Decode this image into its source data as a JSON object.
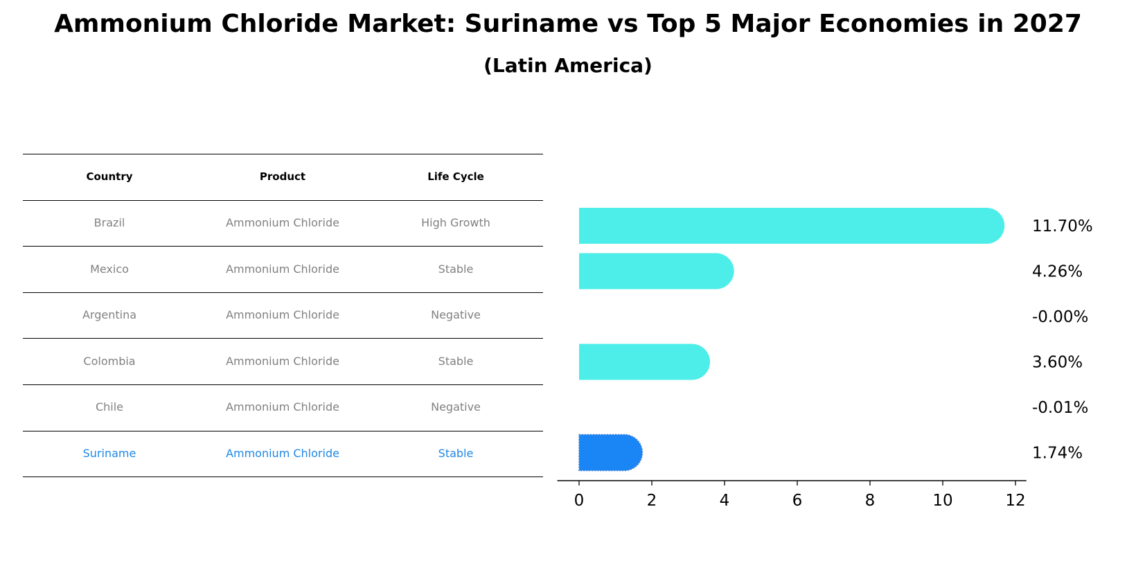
{
  "title": "Ammonium Chloride Market: Suriname vs Top 5 Major Economies in 2027",
  "subtitle": "(Latin America)",
  "table": {
    "headers": [
      "Country",
      "Product",
      "Life Cycle"
    ],
    "rows": [
      {
        "country": "Brazil",
        "product": "Ammonium Chloride",
        "life_cycle": "High Growth",
        "highlight": false
      },
      {
        "country": "Mexico",
        "product": "Ammonium Chloride",
        "life_cycle": "Stable",
        "highlight": false
      },
      {
        "country": "Argentina",
        "product": "Ammonium Chloride",
        "life_cycle": "Negative",
        "highlight": false
      },
      {
        "country": "Colombia",
        "product": "Ammonium Chloride",
        "life_cycle": "Stable",
        "highlight": false
      },
      {
        "country": "Chile",
        "product": "Ammonium Chloride",
        "life_cycle": "Negative",
        "highlight": false
      },
      {
        "country": "Suriname",
        "product": "Ammonium Chloride",
        "life_cycle": "Stable",
        "highlight": true
      }
    ]
  },
  "colors": {
    "bar": "#4deee9",
    "highlight_bar": "#1a85f5",
    "highlight_text": "#1e88e5",
    "muted_text": "#808080"
  },
  "chart_data": {
    "type": "bar",
    "orientation": "horizontal",
    "categories": [
      "Brazil",
      "Mexico",
      "Argentina",
      "Colombia",
      "Chile",
      "Suriname"
    ],
    "values": [
      11.7,
      4.26,
      -0.0,
      3.6,
      -0.01,
      1.74
    ],
    "value_labels": [
      "11.70%",
      "4.26%",
      "-0.00%",
      "3.60%",
      "-0.01%",
      "1.74%"
    ],
    "highlight_index": 5,
    "xticks": [
      0,
      2,
      4,
      6,
      8,
      10,
      12
    ],
    "xlim": [
      -0.6,
      12.3
    ],
    "xlabel": "",
    "ylabel": "",
    "grid": false
  }
}
